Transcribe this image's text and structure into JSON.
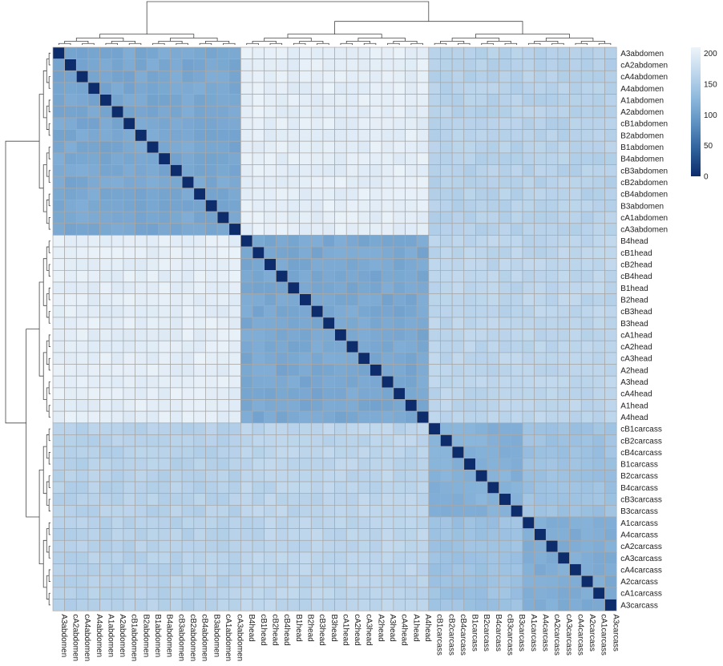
{
  "chart_data": {
    "type": "heatmap",
    "title": "",
    "xlabel": "",
    "ylabel": "",
    "row_labels": [
      "A3abdomen",
      "cA2abdomen",
      "cA4abdomen",
      "A4abdomen",
      "A1abdomen",
      "A2abdomen",
      "cB1abdomen",
      "B2abdomen",
      "B1abdomen",
      "B4abdomen",
      "cB3abdomen",
      "cB2abdomen",
      "cB4abdomen",
      "B3abdomen",
      "cA1abdomen",
      "cA3abdomen",
      "B4head",
      "cB1head",
      "cB2head",
      "cB4head",
      "B1head",
      "B2head",
      "cB3head",
      "B3head",
      "cA1head",
      "cA2head",
      "cA3head",
      "A2head",
      "A3head",
      "cA4head",
      "A1head",
      "A4head",
      "cB1carcass",
      "cB2carcass",
      "cB4carcass",
      "B1carcass",
      "B2carcass",
      "B4carcass",
      "cB3carcass",
      "B3carcass",
      "A1carcass",
      "A4carcass",
      "cA2carcass",
      "cA3carcass",
      "cA4carcass",
      "A2carcass",
      "cA1carcass",
      "A3carcass"
    ],
    "col_labels": [
      "A3abdomen",
      "cA2abdomen",
      "cA4abdomen",
      "A4abdomen",
      "A1abdomen",
      "A2abdomen",
      "cB1abdomen",
      "B2abdomen",
      "B1abdomen",
      "B4abdomen",
      "cB3abdomen",
      "cB2abdomen",
      "cB4abdomen",
      "B3abdomen",
      "cA1abdomen",
      "cA3abdomen",
      "B4head",
      "cB1head",
      "cB2head",
      "cB4head",
      "B1head",
      "B2head",
      "cB3head",
      "B3head",
      "cA1head",
      "cA2head",
      "cA3head",
      "A2head",
      "A3head",
      "cA4head",
      "A1head",
      "A4head",
      "cB1carcass",
      "cB2carcass",
      "cB4carcass",
      "B1carcass",
      "B2carcass",
      "B4carcass",
      "cB3carcass",
      "B3carcass",
      "A1carcass",
      "A4carcass",
      "cA2carcass",
      "cA3carcass",
      "cA4carcass",
      "A2carcass",
      "cA1carcass",
      "A3carcass"
    ],
    "groups": [
      {
        "start": 0,
        "end": 15
      },
      {
        "start": 16,
        "end": 31
      },
      {
        "start": 32,
        "end": 47
      }
    ],
    "approx_values": {
      "diagonal": 0,
      "within_abdomen": 110,
      "within_head": 110,
      "within_carcass_B": 120,
      "within_carcass_A": 115,
      "carcass_A_vs_B": 140,
      "abdomen_vs_head": 200,
      "abdomen_vs_carcass": 160,
      "head_vs_carcass": 165
    },
    "color_scale": {
      "min": 0,
      "max": 210,
      "colors": [
        "#0d2c6b",
        "#2d5f99",
        "#5b8fc0",
        "#8cb7dc",
        "#bfd7ec",
        "#eef4fa"
      ],
      "ticks": [
        0,
        50,
        100,
        150,
        200
      ]
    },
    "legend_position": "top-right",
    "grid": true
  }
}
